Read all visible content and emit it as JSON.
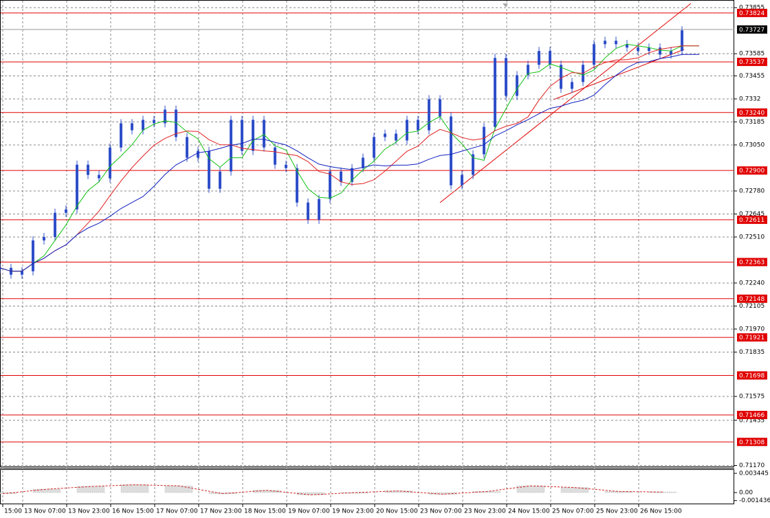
{
  "chart_data": {
    "type": "candlestick",
    "close": [
      0.72329,
      0.72289,
      0.72309,
      0.7249,
      0.7251,
      0.72652,
      0.72672,
      0.72934,
      0.72874,
      0.72854,
      0.73035,
      0.73177,
      0.73136,
      0.73197,
      0.73177,
      0.73257,
      0.73096,
      0.72975,
      0.73015,
      0.72793,
      0.72894,
      0.73197,
      0.73015,
      0.73197,
      0.73035,
      0.72934,
      0.72914,
      0.72712,
      0.72611,
      0.72733,
      0.72894,
      0.72833,
      0.72914,
      0.72975,
      0.73096,
      0.73116,
      0.73076,
      0.73197,
      0.73136,
      0.73318,
      0.73217,
      0.72813,
      0.72874,
      0.72995,
      0.73156,
      0.7356,
      0.73338,
      0.73459,
      0.7352,
      0.73601,
      0.7352,
      0.73379,
      0.73419,
      0.7352,
      0.73641,
      0.73661,
      0.73641,
      0.73621,
      0.73601,
      0.73621,
      0.7358,
      0.73601,
      0.73722
    ],
    "color": "#2f4fc8",
    "ylim": [
      0.7116,
      0.739
    ],
    "yticks": [
      0.73855,
      0.73585,
      0.73455,
      0.7332,
      0.73185,
      {
        "value": 0.7305,
        "label": "0.73050"
      },
      {
        "value": 0.7278,
        "label": "0.72780"
      },
      0.72645,
      {
        "value": 0.7251,
        "label": "0.72510"
      },
      {
        "value": 0.7224,
        "label": "0.72240"
      },
      0.72105,
      {
        "value": 0.7197,
        "label": "0.71970"
      },
      0.71835,
      0.71575,
      0.71435,
      {
        "value": 0.7117,
        "label": "0.71170"
      }
    ],
    "grid": true,
    "levels": [
      0.73824,
      0.73537,
      {
        "value": 0.7324,
        "label": "0.73240"
      },
      {
        "value": 0.729,
        "label": "0.72900"
      },
      0.72611,
      0.72363,
      0.72148,
      0.71921,
      0.71698,
      0.71466,
      0.71308
    ],
    "level_color": "#e00000",
    "current_price": 0.73727,
    "xlabels": [
      "15:00",
      "13 Nov 07:00",
      "13 Nov 23:00",
      "16 Nov 15:00",
      "17 Nov 07:00",
      "17 Nov 23:00",
      "18 Nov 15:00",
      "19 Nov 07:00",
      "19 Nov 23:00",
      "20 Nov 15:00",
      "23 Nov 07:00",
      "23 Nov 23:00",
      "24 Nov 15:00",
      "25 Nov 07:00",
      "25 Nov 23:00",
      "26 Nov 15:00"
    ],
    "oscillator": {
      "values": [
        -0.0002,
        0.0006,
        0.0011,
        0.0014,
        0.0012,
        -0.0002,
        0.0004,
        -0.0004,
        0,
        0.0003,
        -0.0003,
        0.0002,
        0.0012,
        0.0009,
        0.0002,
        0.0001
      ],
      "color": "#d02020",
      "yticks": [
        0.003445,
        {
          "value": 0,
          "label": "0.00"
        },
        -0.001436
      ]
    }
  }
}
